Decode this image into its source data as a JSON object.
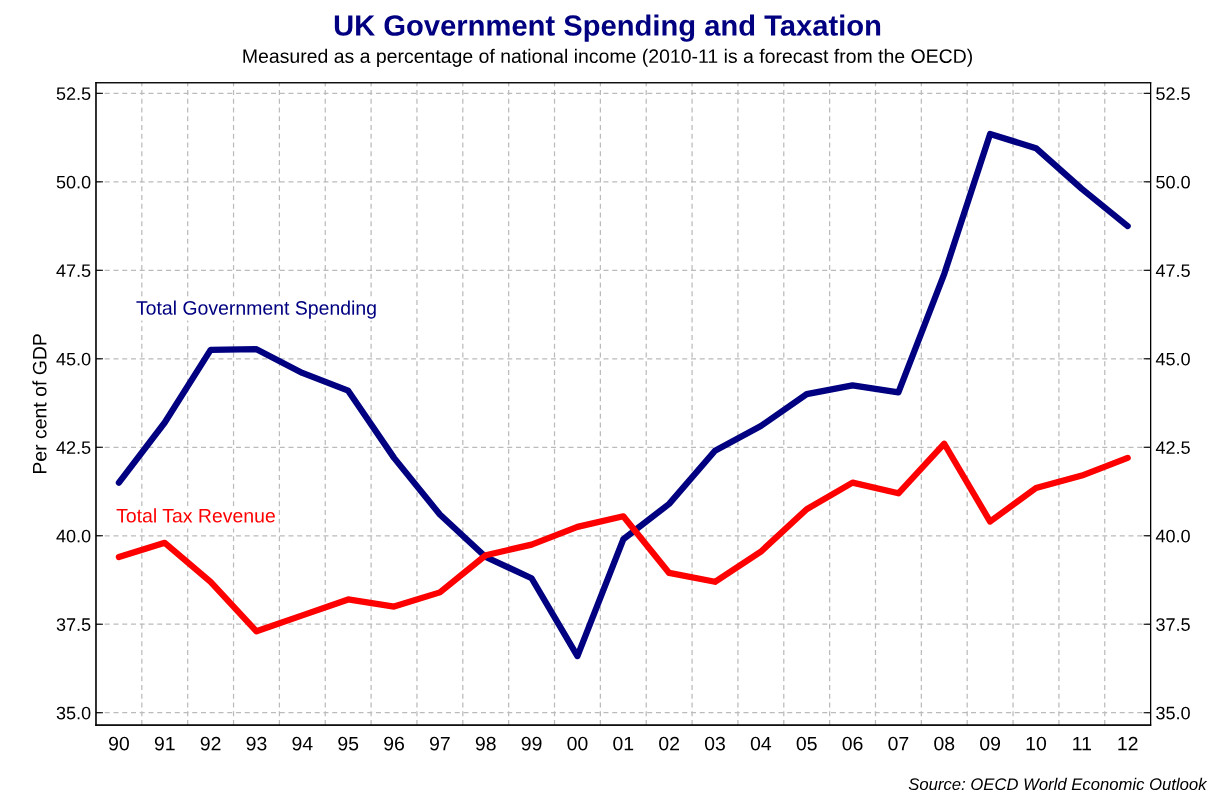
{
  "chart_data": {
    "type": "line",
    "title": "UK Government Spending and Taxation",
    "subtitle": "Measured as a percentage of national income (2010-11 is a forecast from the OECD)",
    "ylabel": "Per cent of GDP",
    "categories": [
      "90",
      "91",
      "92",
      "93",
      "94",
      "95",
      "96",
      "97",
      "98",
      "99",
      "00",
      "01",
      "02",
      "03",
      "04",
      "05",
      "06",
      "07",
      "08",
      "09",
      "10",
      "11",
      "12"
    ],
    "series": [
      {
        "name": "Total Government Spending",
        "color": "#000080",
        "values": [
          41.5,
          43.2,
          45.25,
          45.27,
          44.6,
          44.1,
          42.2,
          40.6,
          39.4,
          38.8,
          36.6,
          39.9,
          40.9,
          42.4,
          43.1,
          44.0,
          44.25,
          44.05,
          47.4,
          51.35,
          50.95,
          49.8,
          48.75
        ]
      },
      {
        "name": "Total Tax Revenue",
        "color": "#ff0000",
        "values": [
          39.4,
          39.8,
          38.7,
          37.3,
          37.75,
          38.2,
          38.0,
          38.4,
          39.45,
          39.75,
          40.25,
          40.55,
          38.95,
          38.7,
          39.55,
          40.75,
          41.5,
          41.2,
          42.6,
          40.4,
          41.35,
          41.7,
          42.2
        ]
      }
    ],
    "ylim": [
      34.65,
      52.8
    ],
    "yticks": [
      {
        "value": 35,
        "label": "35.0"
      },
      {
        "value": 37.5,
        "label": "37.5"
      },
      {
        "value": 40,
        "label": "40.0"
      },
      {
        "value": 42.5,
        "label": "42.5"
      },
      {
        "value": 45,
        "label": "45.0"
      },
      {
        "value": 47.5,
        "label": "47.5"
      },
      {
        "value": 50,
        "label": "50.0"
      },
      {
        "value": 52.5,
        "label": "52.5"
      }
    ],
    "y2lim": [
      34.65,
      52.8
    ],
    "y2ticks": [
      {
        "value": 35,
        "label": "35.0"
      },
      {
        "value": 37.5,
        "label": "37.5"
      },
      {
        "value": 40,
        "label": "40.0"
      },
      {
        "value": 42.5,
        "label": "42.5"
      },
      {
        "value": 45,
        "label": "45.0"
      },
      {
        "value": 47.5,
        "label": "47.5"
      },
      {
        "value": 50,
        "label": "50.0"
      },
      {
        "value": 52.5,
        "label": "52.5"
      }
    ],
    "grid": true,
    "legend": false,
    "marker": "none",
    "line_style": "solid",
    "annotations": [
      "Source: OECD World Economic Outlook"
    ]
  }
}
